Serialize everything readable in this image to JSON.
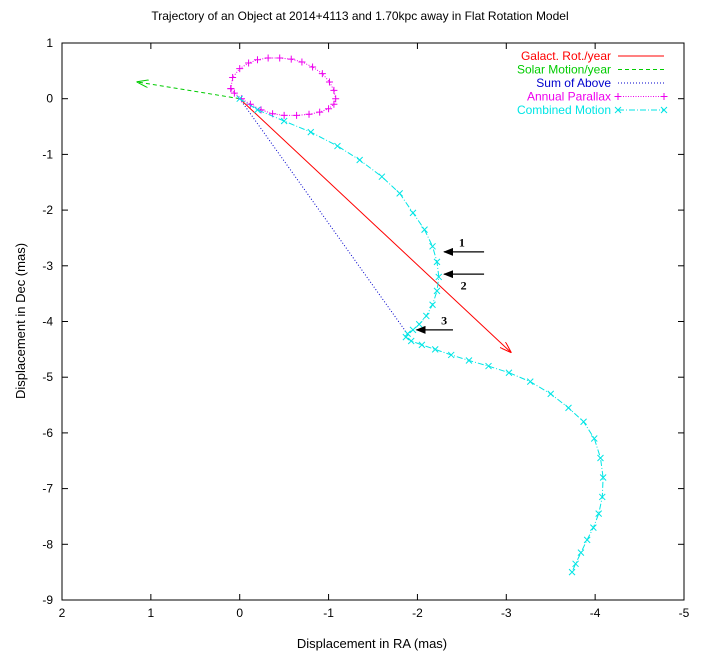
{
  "chart_data": {
    "type": "line",
    "title": "Trajectory of an Object at 2014+4113 and  1.70kpc away in Flat Rotation Model",
    "xlabel": "Displacement in RA (mas)",
    "ylabel": "Displacement in Dec (mas)",
    "xlim": [
      2,
      -5
    ],
    "ylim": [
      -9,
      1
    ],
    "x_reversed": true,
    "x_ticks": [
      2,
      1,
      0,
      -1,
      -2,
      -3,
      -4,
      -5
    ],
    "y_ticks": [
      1,
      0,
      -1,
      -2,
      -3,
      -4,
      -5,
      -6,
      -7,
      -8,
      -9
    ],
    "x_tick_labels": [
      "2",
      "1",
      "0",
      "-1",
      "-2",
      "-3",
      "-4",
      "-5"
    ],
    "y_tick_labels": [
      "1",
      "0",
      "-1",
      "-2",
      "-3",
      "-4",
      "-5",
      "-6",
      "-7",
      "-8",
      "-9"
    ],
    "legend_position": "top-right",
    "series": [
      {
        "name": "Galact. Rot./year",
        "color": "#ff0000",
        "style": "solid-arrow",
        "x": [
          0.0,
          -3.05
        ],
        "y": [
          0.0,
          -4.55
        ]
      },
      {
        "name": "Solar Motion/year",
        "color": "#00cc00",
        "style": "dashed-arrow",
        "x": [
          0.0,
          1.15
        ],
        "y": [
          0.0,
          0.3
        ]
      },
      {
        "name": "Sum of Above",
        "color": "#0000cc",
        "style": "dotted",
        "x": [
          0.0,
          -1.9
        ],
        "y": [
          0.0,
          -4.25
        ]
      },
      {
        "name": "Annual Parallax",
        "color": "#ee00ee",
        "style": "plus-markers",
        "x": [
          0.1,
          0.08,
          0.0,
          -0.1,
          -0.2,
          -0.32,
          -0.45,
          -0.58,
          -0.7,
          -0.82,
          -0.93,
          -1.01,
          -1.06,
          -1.08,
          -1.06,
          -1.0,
          -0.9,
          -0.78,
          -0.64,
          -0.5,
          -0.37,
          -0.24,
          -0.12,
          -0.02,
          0.06,
          0.1
        ],
        "y": [
          0.18,
          0.38,
          0.54,
          0.64,
          0.7,
          0.73,
          0.73,
          0.71,
          0.66,
          0.57,
          0.45,
          0.3,
          0.15,
          0.0,
          -0.1,
          -0.18,
          -0.24,
          -0.28,
          -0.3,
          -0.3,
          -0.27,
          -0.2,
          -0.1,
          0.0,
          0.1,
          0.18
        ]
      },
      {
        "name": "Combined Motion",
        "color": "#00e5e5",
        "style": "dashdot-x-markers",
        "x": [
          0.0,
          -0.2,
          -0.5,
          -0.8,
          -1.1,
          -1.35,
          -1.6,
          -1.8,
          -1.95,
          -2.08,
          -2.17,
          -2.22,
          -2.24,
          -2.22,
          -2.17,
          -2.1,
          -2.02,
          -1.95,
          -1.89,
          -1.87,
          -1.93,
          -2.05,
          -2.2,
          -2.38,
          -2.58,
          -2.8,
          -3.03,
          -3.27,
          -3.5,
          -3.7,
          -3.87,
          -3.99,
          -4.06,
          -4.09,
          -4.08,
          -4.04,
          -3.98,
          -3.91,
          -3.84,
          -3.78,
          -3.74
        ],
        "y": [
          0.0,
          -0.2,
          -0.4,
          -0.6,
          -0.85,
          -1.1,
          -1.4,
          -1.7,
          -2.05,
          -2.35,
          -2.65,
          -2.93,
          -3.2,
          -3.45,
          -3.7,
          -3.9,
          -4.05,
          -4.15,
          -4.22,
          -4.28,
          -4.35,
          -4.42,
          -4.5,
          -4.6,
          -4.7,
          -4.8,
          -4.92,
          -5.08,
          -5.3,
          -5.55,
          -5.8,
          -6.1,
          -6.45,
          -6.8,
          -7.15,
          -7.45,
          -7.7,
          -7.92,
          -8.15,
          -8.35,
          -8.5
        ]
      }
    ],
    "annotations": [
      {
        "text": "1",
        "arrow_from": [
          -2.75,
          -2.75
        ],
        "arrow_to": [
          -2.3,
          -2.75
        ],
        "label_at": [
          -2.5,
          -2.58
        ]
      },
      {
        "text": "2",
        "arrow_from": [
          -2.75,
          -3.15
        ],
        "arrow_to": [
          -2.3,
          -3.15
        ],
        "label_at": [
          -2.52,
          -3.35
        ]
      },
      {
        "text": "3",
        "arrow_from": [
          -2.4,
          -4.15
        ],
        "arrow_to": [
          -1.99,
          -4.15
        ],
        "label_at": [
          -2.3,
          -3.98
        ]
      }
    ]
  }
}
